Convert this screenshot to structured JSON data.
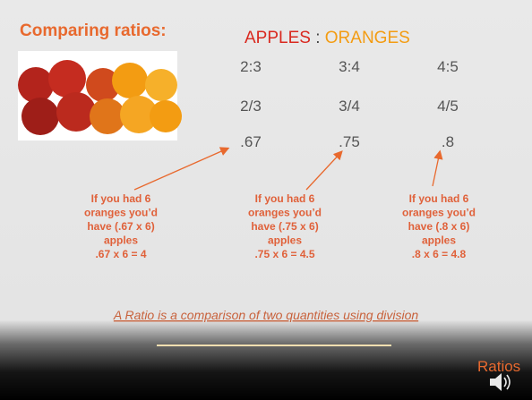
{
  "slide": {
    "title": "Comparing ratios:",
    "header": {
      "left": "APPLES",
      "separator": ":",
      "right": "ORANGES"
    },
    "rows": [
      [
        "2:3",
        "3:4",
        "4:5"
      ],
      [
        "2/3",
        "3/4",
        "4/5"
      ],
      [
        ".67",
        ".75",
        ".8"
      ]
    ],
    "notes": [
      [
        "If you had 6",
        "oranges you’d",
        "have (.67 x 6)",
        "apples",
        ".67 x 6 = 4"
      ],
      [
        "If you had 6",
        "oranges you’d",
        "have (.75 x 6)",
        "apples",
        ".75 x 6 = 4.5"
      ],
      [
        "If you had 6",
        "oranges you’d",
        "have (.8 x 6)",
        "apples",
        ".8 x 6 = 4.8"
      ]
    ],
    "definition": "A Ratio is a comparison of two quantities using division",
    "footer": "Ratios"
  }
}
